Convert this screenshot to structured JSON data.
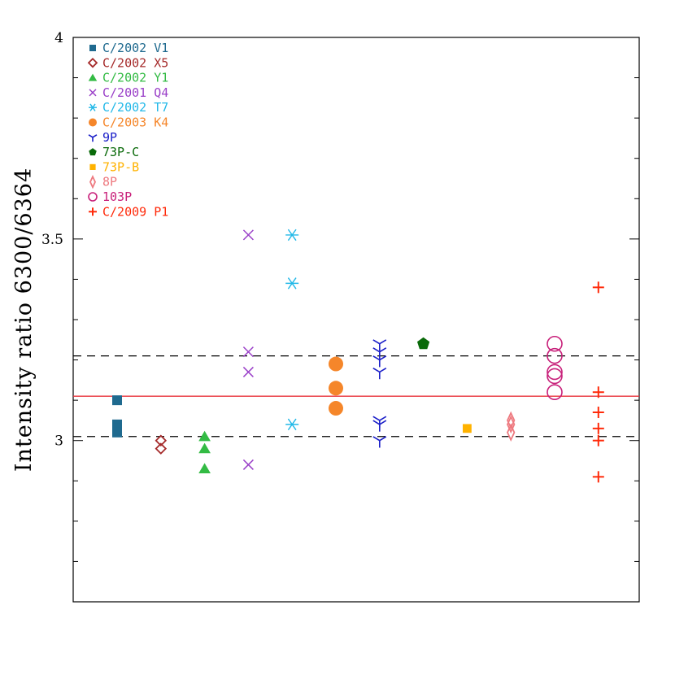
{
  "chart_data": {
    "type": "scatter",
    "title": "",
    "xlabel": "",
    "ylabel": "Intensity ratio 6300/6364",
    "ylim": [
      2.6,
      4.0
    ],
    "yticks": [
      "3",
      "3.5",
      "4"
    ],
    "xlim": [
      0,
      13
    ],
    "grid": false,
    "legend_position": "top-left",
    "reference_lines": [
      {
        "y": 3.11,
        "style": "solid",
        "color": "#e8303a"
      },
      {
        "y": 3.21,
        "style": "dashed",
        "color": "#000000"
      },
      {
        "y": 3.01,
        "style": "dashed",
        "color": "#000000"
      }
    ],
    "series": [
      {
        "name": "C/2002 V1",
        "marker": "square",
        "color": "#1f6a8f",
        "x": [
          1,
          1,
          1,
          1
        ],
        "y": [
          3.1,
          3.04,
          3.03,
          3.02
        ]
      },
      {
        "name": "C/2002 X5",
        "marker": "diamond-open",
        "color": "#a52a2a",
        "x": [
          2,
          2
        ],
        "y": [
          3.0,
          2.98
        ]
      },
      {
        "name": "C/2002 Y1",
        "marker": "triangle",
        "color": "#33bb44",
        "x": [
          3,
          3,
          3
        ],
        "y": [
          3.01,
          2.98,
          2.93
        ]
      },
      {
        "name": "C/2001 Q4",
        "marker": "x",
        "color": "#9a40c8",
        "x": [
          4,
          4,
          4,
          4
        ],
        "y": [
          3.51,
          3.22,
          3.17,
          2.94
        ]
      },
      {
        "name": "C/2002 T7",
        "marker": "asterisk",
        "color": "#22b8e8",
        "x": [
          5,
          5,
          5
        ],
        "y": [
          3.51,
          3.39,
          3.04
        ]
      },
      {
        "name": "C/2003 K4",
        "marker": "circle",
        "color": "#f5862a",
        "x": [
          6,
          6,
          6
        ],
        "y": [
          3.19,
          3.13,
          3.08
        ]
      },
      {
        "name": "9P",
        "marker": "tri-down",
        "color": "#1a1ec8",
        "x": [
          7,
          7,
          7,
          7,
          7,
          7,
          7
        ],
        "y": [
          3.24,
          3.22,
          3.2,
          3.17,
          3.05,
          3.04,
          3.0
        ]
      },
      {
        "name": "73P-C",
        "marker": "pentagon",
        "color": "#0a6a0a",
        "x": [
          8
        ],
        "y": [
          3.24
        ]
      },
      {
        "name": "73P-B",
        "marker": "square-small",
        "color": "#ffb200",
        "x": [
          9
        ],
        "y": [
          3.03
        ]
      },
      {
        "name": "8P",
        "marker": "thin-diamond-open",
        "color": "#ee7a80",
        "x": [
          10,
          10,
          10
        ],
        "y": [
          3.05,
          3.04,
          3.02
        ]
      },
      {
        "name": "103P",
        "marker": "circle-open",
        "color": "#c8207a",
        "x": [
          11,
          11,
          11,
          11,
          11
        ],
        "y": [
          3.24,
          3.21,
          3.17,
          3.16,
          3.12
        ]
      },
      {
        "name": "C/2009 P1",
        "marker": "plus",
        "color": "#ff2a0a",
        "x": [
          12,
          12,
          12,
          12,
          12,
          12
        ],
        "y": [
          3.38,
          3.12,
          3.07,
          3.03,
          3.0,
          2.91
        ]
      }
    ]
  }
}
